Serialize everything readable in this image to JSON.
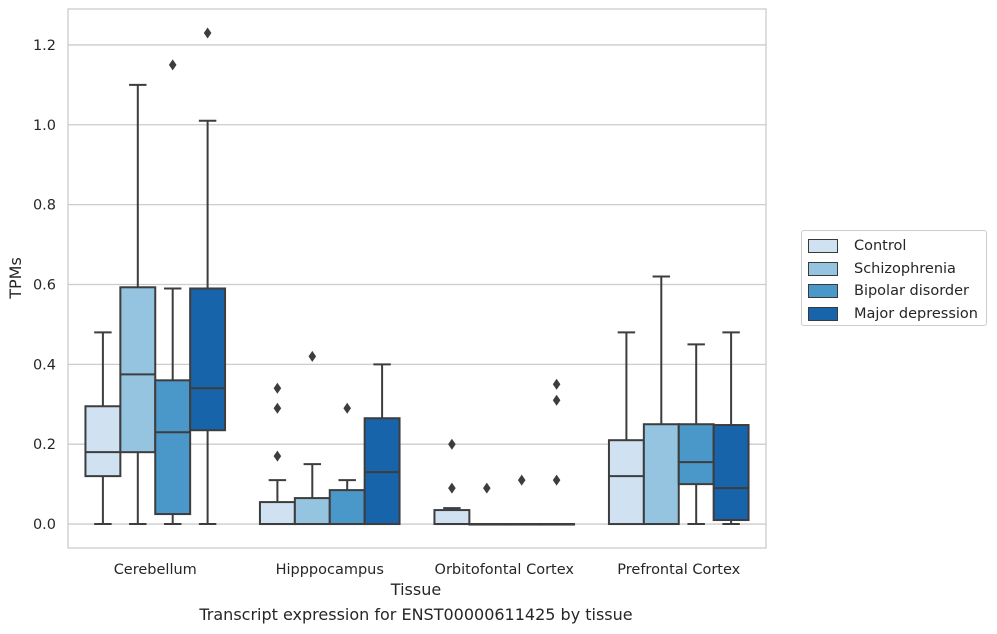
{
  "caption": "Transcript expression for ENST00000611425 by tissue",
  "chart_data": {
    "type": "box",
    "xlabel": "Tissue",
    "ylabel": "TPMs",
    "ylim": [
      -0.06,
      1.29
    ],
    "yticks": [
      "0.0",
      "0.2",
      "0.4",
      "0.6",
      "0.8",
      "1.0",
      "1.2"
    ],
    "grid": "horizontal",
    "legend_position": "right",
    "categories": [
      "Cerebellum",
      "Hipppocampus",
      "Orbitofontal Cortex",
      "Prefrontal Cortex"
    ],
    "series": [
      {
        "name": "Control",
        "color": "#d0e1f2",
        "boxes": [
          {
            "whislo": 0.0,
            "q1": 0.12,
            "med": 0.18,
            "q3": 0.295,
            "whishi": 0.48,
            "fliers": []
          },
          {
            "whislo": 0.0,
            "q1": 0.0,
            "med": 0.0,
            "q3": 0.055,
            "whishi": 0.11,
            "fliers": [
              0.17,
              0.29,
              0.34
            ]
          },
          {
            "whislo": 0.0,
            "q1": 0.0,
            "med": 0.0,
            "q3": 0.035,
            "whishi": 0.04,
            "fliers": [
              0.09,
              0.2
            ]
          },
          {
            "whislo": 0.0,
            "q1": 0.0,
            "med": 0.12,
            "q3": 0.21,
            "whishi": 0.48,
            "fliers": []
          }
        ]
      },
      {
        "name": "Schizophrenia",
        "color": "#94c4df",
        "boxes": [
          {
            "whislo": 0.0,
            "q1": 0.18,
            "med": 0.375,
            "q3": 0.593,
            "whishi": 1.1,
            "fliers": []
          },
          {
            "whislo": 0.0,
            "q1": 0.0,
            "med": 0.0,
            "q3": 0.065,
            "whishi": 0.15,
            "fliers": [
              0.42
            ]
          },
          {
            "whislo": 0.0,
            "q1": 0.0,
            "med": 0.0,
            "q3": 0.0,
            "whishi": 0.0,
            "fliers": [
              0.09
            ]
          },
          {
            "whislo": 0.0,
            "q1": 0.0,
            "med": 0.0,
            "q3": 0.25,
            "whishi": 0.62,
            "fliers": []
          }
        ]
      },
      {
        "name": "Bipolar disorder",
        "color": "#4a98c9",
        "boxes": [
          {
            "whislo": 0.0,
            "q1": 0.025,
            "med": 0.23,
            "q3": 0.36,
            "whishi": 0.59,
            "fliers": [
              1.15
            ]
          },
          {
            "whislo": 0.0,
            "q1": 0.0,
            "med": 0.0,
            "q3": 0.085,
            "whishi": 0.11,
            "fliers": [
              0.29
            ]
          },
          {
            "whislo": 0.0,
            "q1": 0.0,
            "med": 0.0,
            "q3": 0.0,
            "whishi": 0.0,
            "fliers": [
              0.11
            ]
          },
          {
            "whislo": 0.0,
            "q1": 0.1,
            "med": 0.155,
            "q3": 0.25,
            "whishi": 0.45,
            "fliers": []
          }
        ]
      },
      {
        "name": "Major depression",
        "color": "#1764ab",
        "boxes": [
          {
            "whislo": 0.0,
            "q1": 0.235,
            "med": 0.34,
            "q3": 0.59,
            "whishi": 1.01,
            "fliers": [
              1.23
            ]
          },
          {
            "whislo": 0.0,
            "q1": 0.0,
            "med": 0.13,
            "q3": 0.265,
            "whishi": 0.4,
            "fliers": []
          },
          {
            "whislo": 0.0,
            "q1": 0.0,
            "med": 0.0,
            "q3": 0.0,
            "whishi": 0.0,
            "fliers": [
              0.11,
              0.31,
              0.35
            ]
          },
          {
            "whislo": 0.0,
            "q1": 0.01,
            "med": 0.09,
            "q3": 0.248,
            "whishi": 0.48,
            "fliers": []
          }
        ]
      }
    ]
  }
}
